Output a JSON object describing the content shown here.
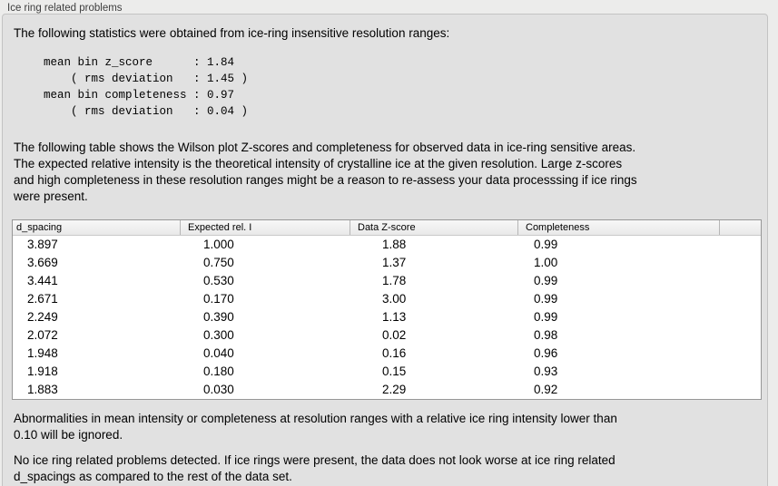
{
  "section": {
    "title": "Ice ring related problems"
  },
  "texts": {
    "intro": "The following statistics were obtained from ice-ring insensitive resolution ranges:",
    "stats_block": "mean bin z_score      : 1.84\n    ( rms deviation   : 1.45 )\nmean bin completeness : 0.97\n    ( rms deviation   : 0.04 )",
    "table_description": "The following table shows the Wilson plot Z-scores and completeness for observed data in ice-ring sensitive areas.\nThe expected relative intensity is the theoretical intensity of crystalline ice at the given resolution. Large z-scores\nand high completeness in these resolution ranges might be a reason to re-assess your data processsing if ice rings\nwere present.",
    "ignore_note": "Abnormalities in mean intensity or completeness at resolution ranges with a relative ice ring intensity lower than\n0.10 will be ignored.",
    "conclusion": "No ice ring related problems detected. If ice rings were present, the data does not look worse at ice ring related\nd_spacings as compared to the rest of the data set."
  },
  "table": {
    "columns": [
      "d_spacing",
      "Expected rel. I",
      "Data Z-score",
      "Completeness"
    ],
    "rows": [
      [
        "3.897",
        "1.000",
        "1.88",
        "0.99"
      ],
      [
        "3.669",
        "0.750",
        "1.37",
        "1.00"
      ],
      [
        "3.441",
        "0.530",
        "1.78",
        "0.99"
      ],
      [
        "2.671",
        "0.170",
        "3.00",
        "0.99"
      ],
      [
        "2.249",
        "0.390",
        "1.13",
        "0.99"
      ],
      [
        "2.072",
        "0.300",
        "0.02",
        "0.98"
      ],
      [
        "1.948",
        "0.040",
        "0.16",
        "0.96"
      ],
      [
        "1.918",
        "0.180",
        "0.15",
        "0.93"
      ],
      [
        "1.883",
        "0.030",
        "2.29",
        "0.92"
      ]
    ]
  },
  "colors": {
    "page_bg": "#ececeb",
    "panel_bg": "#e1e1e1",
    "panel_border": "#c3c3c3",
    "table_border": "#979797",
    "table_body_bg": "#ffffff"
  }
}
